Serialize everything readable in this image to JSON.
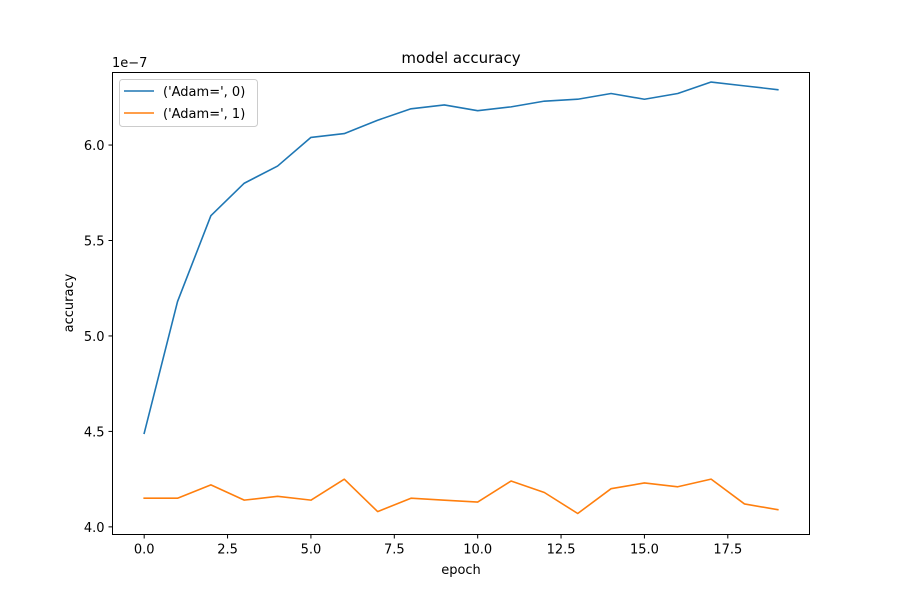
{
  "chart_data": {
    "type": "line",
    "title": "model accuracy",
    "xlabel": "epoch",
    "ylabel": "accuracy",
    "y_offset_label": "1e−7",
    "y_scale": 1e-07,
    "xlim": [
      -0.95,
      19.95
    ],
    "ylim": [
      3.96,
      6.38
    ],
    "xticks": [
      0.0,
      2.5,
      5.0,
      7.5,
      10.0,
      12.5,
      15.0,
      17.5
    ],
    "xtick_labels": [
      "0.0",
      "2.5",
      "5.0",
      "7.5",
      "10.0",
      "12.5",
      "15.0",
      "17.5"
    ],
    "yticks": [
      4.0,
      4.5,
      5.0,
      5.5,
      6.0
    ],
    "ytick_labels": [
      "4.0",
      "4.5",
      "5.0",
      "5.5",
      "6.0"
    ],
    "grid": false,
    "legend_position": "upper-left",
    "x": [
      0,
      1,
      2,
      3,
      4,
      5,
      6,
      7,
      8,
      9,
      10,
      11,
      12,
      13,
      14,
      15,
      16,
      17,
      18,
      19
    ],
    "series": [
      {
        "name": "('Adam=', 0)",
        "color": "#1f77b4",
        "values": [
          4.49,
          5.18,
          5.63,
          5.8,
          5.89,
          6.04,
          6.06,
          6.13,
          6.19,
          6.21,
          6.18,
          6.2,
          6.23,
          6.24,
          6.27,
          6.24,
          6.27,
          6.33,
          6.31,
          6.29
        ]
      },
      {
        "name": "('Adam=', 1)",
        "color": "#ff7f0e",
        "values": [
          4.15,
          4.15,
          4.22,
          4.14,
          4.16,
          4.14,
          4.25,
          4.08,
          4.15,
          4.14,
          4.13,
          4.24,
          4.18,
          4.07,
          4.2,
          4.23,
          4.21,
          4.25,
          4.12,
          4.09
        ]
      }
    ]
  }
}
